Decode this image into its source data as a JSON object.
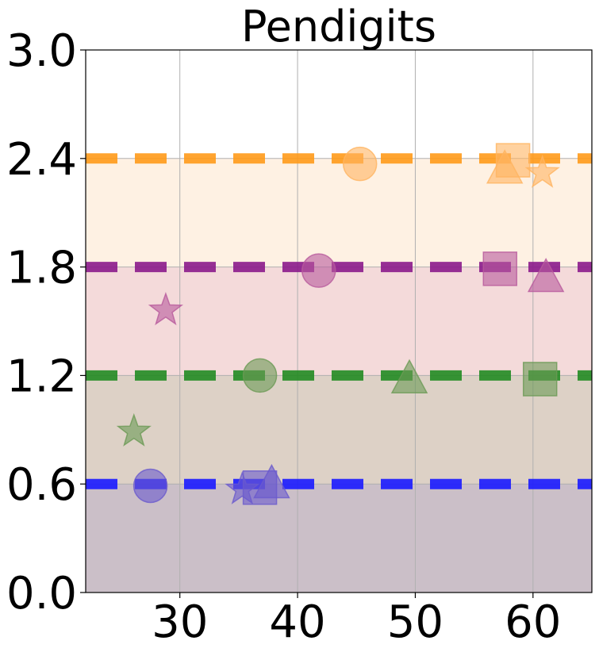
{
  "chart_data": {
    "type": "scatter",
    "title": "Pendigits",
    "xlabel": "",
    "ylabel": "",
    "xlim": [
      22,
      65
    ],
    "ylim": [
      0,
      3.0
    ],
    "xticks": [
      30,
      40,
      50,
      60
    ],
    "xtick_labels": [
      "30",
      "40",
      "50",
      "60"
    ],
    "yticks": [
      0.0,
      0.6,
      1.2,
      1.8,
      2.4,
      3.0
    ],
    "ytick_labels": [
      "0.0",
      "0.6",
      "1.2",
      "1.8",
      "2.4",
      "3.0"
    ],
    "grid": true,
    "bands": [
      {
        "y0": 0.0,
        "y1": 0.6,
        "color": "#cbbfc8"
      },
      {
        "y0": 0.6,
        "y1": 1.2,
        "color": "#ddd1c6"
      },
      {
        "y0": 1.2,
        "y1": 1.8,
        "color": "#f4dada"
      },
      {
        "y0": 1.8,
        "y1": 2.4,
        "color": "#fef1e3"
      }
    ],
    "reference_lines": [
      {
        "y": 0.6,
        "color": "#1a1aff"
      },
      {
        "y": 1.2,
        "color": "#228b22"
      },
      {
        "y": 1.8,
        "color": "#8b1a8b"
      },
      {
        "y": 2.4,
        "color": "#ff9a1a"
      }
    ],
    "series": [
      {
        "color": "#6a5acd",
        "points": [
          {
            "x": 27.5,
            "y": 0.59,
            "marker": "circle"
          },
          {
            "x": 35.3,
            "y": 0.57,
            "marker": "star"
          },
          {
            "x": 36.8,
            "y": 0.58,
            "marker": "square"
          },
          {
            "x": 37.8,
            "y": 0.59,
            "marker": "triangle"
          }
        ]
      },
      {
        "color": "#6b9a55",
        "points": [
          {
            "x": 26.1,
            "y": 0.89,
            "marker": "star"
          },
          {
            "x": 36.8,
            "y": 1.2,
            "marker": "circle"
          },
          {
            "x": 49.5,
            "y": 1.17,
            "marker": "triangle"
          },
          {
            "x": 60.6,
            "y": 1.18,
            "marker": "square"
          }
        ]
      },
      {
        "color": "#b85a9c",
        "points": [
          {
            "x": 28.8,
            "y": 1.56,
            "marker": "star"
          },
          {
            "x": 41.8,
            "y": 1.78,
            "marker": "circle"
          },
          {
            "x": 57.2,
            "y": 1.79,
            "marker": "square"
          },
          {
            "x": 61.1,
            "y": 1.73,
            "marker": "triangle"
          }
        ]
      },
      {
        "color": "#ffb460",
        "points": [
          {
            "x": 45.3,
            "y": 2.37,
            "marker": "circle"
          },
          {
            "x": 57.6,
            "y": 2.33,
            "marker": "triangle"
          },
          {
            "x": 58.3,
            "y": 2.39,
            "marker": "square"
          },
          {
            "x": 60.8,
            "y": 2.32,
            "marker": "star"
          }
        ]
      }
    ]
  }
}
